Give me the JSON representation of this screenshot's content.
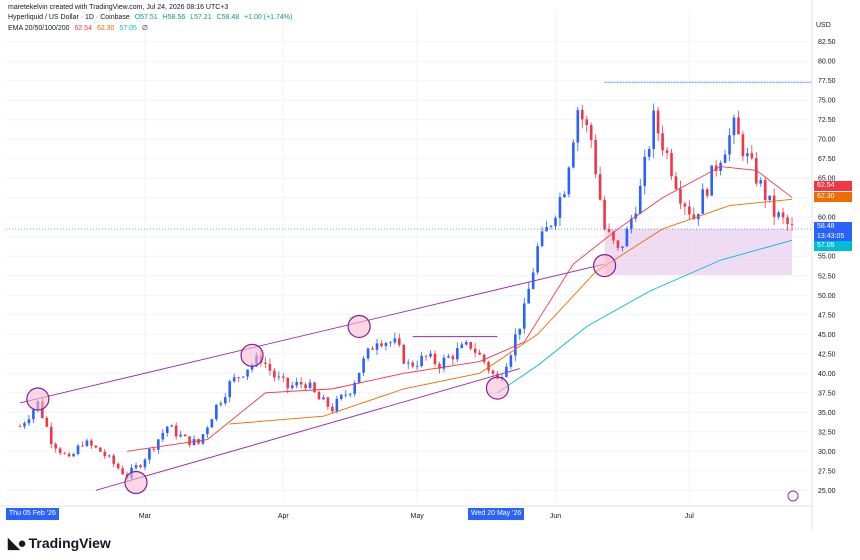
{
  "header": {
    "created_by": "maretekelvin created with TradingView.com, Jul 24, 2026 08:16 UTC+3",
    "symbol": "Hyperliquid / US Dollar · 1D · Coinbase",
    "o": "O57.51",
    "h": "H58.56",
    "l": "L57.21",
    "c": "C58.48",
    "chg": "+1.00 (+1.74%)",
    "ema_label": "EMA 20/50/100/200",
    "ema20": "62.54",
    "ema50": "62.30",
    "ema100": "57.05",
    "ema200": "∅"
  },
  "currency": "USD",
  "price_tags": [
    {
      "value": "62.54",
      "color": "#f23645"
    },
    {
      "value": "62.30",
      "color": "#ef6c00"
    },
    {
      "value": "58.48",
      "color": "#2962ff"
    },
    {
      "value": "13:43:05",
      "color": "#2962ff"
    },
    {
      "value": "57.05",
      "color": "#00bcd4"
    }
  ],
  "x_highlights": {
    "left": "Thu 05 Feb '26",
    "mid": "Wed 20 May '26"
  },
  "brand": "TradingView",
  "colors": {
    "up": "#2962ff",
    "down": "#f23645",
    "channel": "#9c27b0",
    "ema20": "#f23645",
    "ema50": "#ef6c00",
    "ema100": "#00bcd4"
  },
  "chart_data": {
    "type": "candlestick",
    "x_axis_labels": [
      "Mar",
      "Apr",
      "May",
      "Jun",
      "Jul"
    ],
    "y_ticks": [
      "25.00",
      "27.50",
      "30.00",
      "32.50",
      "35.00",
      "37.50",
      "40.00",
      "42.50",
      "45.00",
      "47.50",
      "50.00",
      "52.50",
      "55.00",
      "57.50",
      "60.00",
      "62.50",
      "65.00",
      "67.50",
      "70.00",
      "72.50",
      "75.00",
      "77.50",
      "80.00",
      "82.50"
    ],
    "ylim": [
      23.5,
      84
    ],
    "date_range": [
      "2026-02-01",
      "2026-07-24"
    ],
    "close_series": [
      {
        "date": "2026-02-01",
        "close": 33.2
      },
      {
        "date": "2026-02-05",
        "close": 36.2
      },
      {
        "date": "2026-02-08",
        "close": 31.5
      },
      {
        "date": "2026-02-12",
        "close": 28.8
      },
      {
        "date": "2026-02-15",
        "close": 31.2
      },
      {
        "date": "2026-02-19",
        "close": 30.0
      },
      {
        "date": "2026-02-22",
        "close": 28.4
      },
      {
        "date": "2026-02-25",
        "close": 26.8
      },
      {
        "date": "2026-02-28",
        "close": 28.5
      },
      {
        "date": "2026-03-03",
        "close": 30.8
      },
      {
        "date": "2026-03-06",
        "close": 33.2
      },
      {
        "date": "2026-03-10",
        "close": 31.5
      },
      {
        "date": "2026-03-13",
        "close": 31.0
      },
      {
        "date": "2026-03-17",
        "close": 35.8
      },
      {
        "date": "2026-03-20",
        "close": 38.6
      },
      {
        "date": "2026-03-24",
        "close": 40.8
      },
      {
        "date": "2026-03-27",
        "close": 42.0
      },
      {
        "date": "2026-03-30",
        "close": 39.6
      },
      {
        "date": "2026-04-02",
        "close": 38.2
      },
      {
        "date": "2026-04-06",
        "close": 38.8
      },
      {
        "date": "2026-04-09",
        "close": 36.6
      },
      {
        "date": "2026-04-12",
        "close": 35.5
      },
      {
        "date": "2026-04-16",
        "close": 38.0
      },
      {
        "date": "2026-04-19",
        "close": 41.5
      },
      {
        "date": "2026-04-22",
        "close": 44.5
      },
      {
        "date": "2026-04-26",
        "close": 43.8
      },
      {
        "date": "2026-04-29",
        "close": 41.0
      },
      {
        "date": "2026-05-03",
        "close": 42.0
      },
      {
        "date": "2026-05-06",
        "close": 41.2
      },
      {
        "date": "2026-05-10",
        "close": 42.8
      },
      {
        "date": "2026-05-13",
        "close": 43.6
      },
      {
        "date": "2026-05-16",
        "close": 41.5
      },
      {
        "date": "2026-05-19",
        "close": 39.0
      },
      {
        "date": "2026-05-22",
        "close": 43.0
      },
      {
        "date": "2026-05-25",
        "close": 48.0
      },
      {
        "date": "2026-05-28",
        "close": 56.0
      },
      {
        "date": "2026-05-31",
        "close": 59.5
      },
      {
        "date": "2026-06-03",
        "close": 64.0
      },
      {
        "date": "2026-06-06",
        "close": 74.0
      },
      {
        "date": "2026-06-09",
        "close": 70.0
      },
      {
        "date": "2026-06-12",
        "close": 58.5
      },
      {
        "date": "2026-06-15",
        "close": 55.5
      },
      {
        "date": "2026-06-17",
        "close": 58.0
      },
      {
        "date": "2026-06-20",
        "close": 63.5
      },
      {
        "date": "2026-06-23",
        "close": 72.5
      },
      {
        "date": "2026-06-26",
        "close": 68.0
      },
      {
        "date": "2026-06-29",
        "close": 63.0
      },
      {
        "date": "2026-07-02",
        "close": 60.0
      },
      {
        "date": "2026-07-05",
        "close": 64.0
      },
      {
        "date": "2026-07-08",
        "close": 68.0
      },
      {
        "date": "2026-07-11",
        "close": 71.5
      },
      {
        "date": "2026-07-14",
        "close": 67.5
      },
      {
        "date": "2026-07-17",
        "close": 64.0
      },
      {
        "date": "2026-07-20",
        "close": 60.5
      },
      {
        "date": "2026-07-24",
        "close": 58.48
      }
    ],
    "ema20": [
      {
        "date": "2026-02-25",
        "v": 30.0
      },
      {
        "date": "2026-03-15",
        "v": 31.5
      },
      {
        "date": "2026-03-28",
        "v": 37.5
      },
      {
        "date": "2026-04-12",
        "v": 38.0
      },
      {
        "date": "2026-04-28",
        "v": 40.0
      },
      {
        "date": "2026-05-15",
        "v": 41.5
      },
      {
        "date": "2026-05-25",
        "v": 44.0
      },
      {
        "date": "2026-06-05",
        "v": 54.0
      },
      {
        "date": "2026-06-15",
        "v": 58.5
      },
      {
        "date": "2026-06-25",
        "v": 62.5
      },
      {
        "date": "2026-07-08",
        "v": 66.5
      },
      {
        "date": "2026-07-16",
        "v": 66.0
      },
      {
        "date": "2026-07-24",
        "v": 62.54
      }
    ],
    "ema50": [
      {
        "date": "2026-03-20",
        "v": 33.5
      },
      {
        "date": "2026-04-10",
        "v": 34.5
      },
      {
        "date": "2026-04-28",
        "v": 38.0
      },
      {
        "date": "2026-05-15",
        "v": 40.0
      },
      {
        "date": "2026-05-28",
        "v": 45.0
      },
      {
        "date": "2026-06-10",
        "v": 53.0
      },
      {
        "date": "2026-06-25",
        "v": 58.5
      },
      {
        "date": "2026-07-10",
        "v": 61.5
      },
      {
        "date": "2026-07-24",
        "v": 62.3
      }
    ],
    "ema100": [
      {
        "date": "2026-05-19",
        "v": 37.5
      },
      {
        "date": "2026-05-28",
        "v": 41.0
      },
      {
        "date": "2026-06-08",
        "v": 46.0
      },
      {
        "date": "2026-06-22",
        "v": 50.5
      },
      {
        "date": "2026-07-08",
        "v": 54.5
      },
      {
        "date": "2026-07-24",
        "v": 57.05
      }
    ],
    "channel_upper": [
      {
        "date": "2026-02-01",
        "v": 36.2
      },
      {
        "date": "2026-06-12",
        "v": 54.0
      }
    ],
    "channel_lower": [
      {
        "date": "2026-02-18",
        "v": 25.0
      },
      {
        "date": "2026-05-24",
        "v": 40.6
      }
    ],
    "resistance_line": {
      "from": "2026-06-12",
      "to": "2026-07-24",
      "v": 77.3
    },
    "mini_resistance": {
      "from": "2026-04-30",
      "to": "2026-05-19",
      "v": 44.7
    },
    "support_zone": {
      "from": "2026-06-12",
      "to": "2026-07-24",
      "top": 58.5,
      "bottom": 52.6
    },
    "circles": [
      {
        "date": "2026-02-05",
        "v": 36.7
      },
      {
        "date": "2026-02-27",
        "v": 26.0
      },
      {
        "date": "2026-03-25",
        "v": 42.3
      },
      {
        "date": "2026-04-18",
        "v": 46.0
      },
      {
        "date": "2026-05-19",
        "v": 38.1
      },
      {
        "date": "2026-06-12",
        "v": 53.8
      }
    ]
  }
}
